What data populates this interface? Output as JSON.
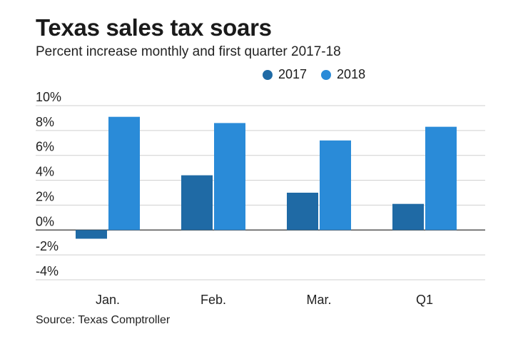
{
  "title": "Texas sales tax soars",
  "subtitle": "Percent increase monthly and first quarter 2017-18",
  "source": "Source: Texas Comptroller",
  "colors": {
    "s2017": "#1f6aa5",
    "s2018": "#2a8bd8",
    "grid": "#cfcfcf",
    "zero": "#333333"
  },
  "chart_data": {
    "type": "bar",
    "categories": [
      "Jan.",
      "Feb.",
      "Mar.",
      "Q1"
    ],
    "series": [
      {
        "name": "2017",
        "values": [
          -0.7,
          4.4,
          3.0,
          2.1
        ]
      },
      {
        "name": "2018",
        "values": [
          9.1,
          8.6,
          7.2,
          8.3
        ]
      }
    ],
    "y_ticks": [
      "10%",
      "8%",
      "6%",
      "4%",
      "2%",
      "0%",
      "-2%",
      "-4%"
    ],
    "ylim": [
      -4,
      10
    ],
    "grid": true,
    "legend": "top"
  }
}
